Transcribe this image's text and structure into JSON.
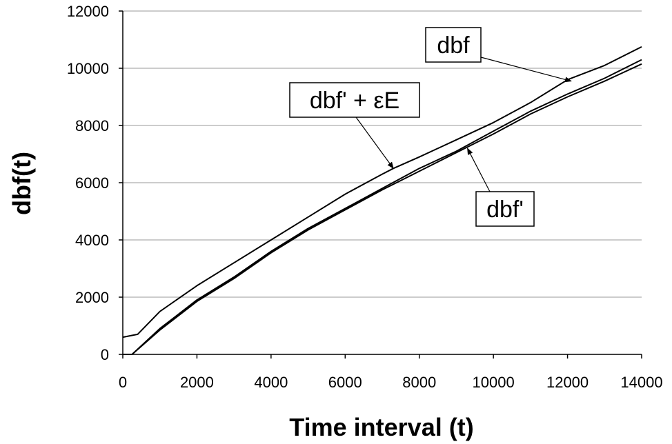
{
  "chart_data": {
    "type": "line",
    "title": "",
    "xlabel": "Time interval (t)",
    "ylabel": "dbf(t)",
    "xlim": [
      0,
      14000
    ],
    "ylim": [
      0,
      12000
    ],
    "xticks": [
      "0",
      "2000",
      "4000",
      "6000",
      "8000",
      "10000",
      "12000",
      "14000"
    ],
    "yticks": [
      "0",
      "2000",
      "4000",
      "6000",
      "8000",
      "10000",
      "12000"
    ],
    "grid": "horizontal",
    "legend": "none",
    "series": [
      {
        "name": "dbf' + εE",
        "color": "#000000",
        "x": [
          0,
          400,
          1000,
          2000,
          3000,
          4000,
          5000,
          6000,
          7000,
          7300,
          8000,
          9000,
          10000,
          11000,
          12000,
          13000,
          14000
        ],
        "y": [
          600,
          700,
          1500,
          2400,
          3200,
          4000,
          4800,
          5600,
          6300,
          6500,
          6900,
          7500,
          8100,
          8800,
          9600,
          10100,
          10750
        ]
      },
      {
        "name": "dbf",
        "color": "#000000",
        "x": [
          0,
          250,
          1000,
          2000,
          3000,
          4000,
          5000,
          6000,
          7000,
          8000,
          9000,
          10000,
          11000,
          12000,
          13000,
          14000
        ],
        "y": [
          0,
          0,
          900,
          1900,
          2700,
          3600,
          4400,
          5100,
          5800,
          6500,
          7100,
          7800,
          8500,
          9100,
          9650,
          10300
        ]
      },
      {
        "name": "dbf'",
        "color": "#000000",
        "x": [
          0,
          250,
          1000,
          2000,
          3000,
          4000,
          5000,
          6000,
          7000,
          8000,
          9000,
          10000,
          11000,
          12000,
          13000,
          14000
        ],
        "y": [
          0,
          0,
          850,
          1850,
          2650,
          3550,
          4350,
          5050,
          5750,
          6400,
          7050,
          7700,
          8400,
          9000,
          9550,
          10150
        ]
      }
    ],
    "annotations": [
      {
        "label": "dbf",
        "target_x": 12100,
        "target_y": 9550
      },
      {
        "label": "dbf' + εE",
        "target_x": 7300,
        "target_y": 6500
      },
      {
        "label": "dbf'",
        "target_x": 9300,
        "target_y": 7200
      }
    ]
  }
}
